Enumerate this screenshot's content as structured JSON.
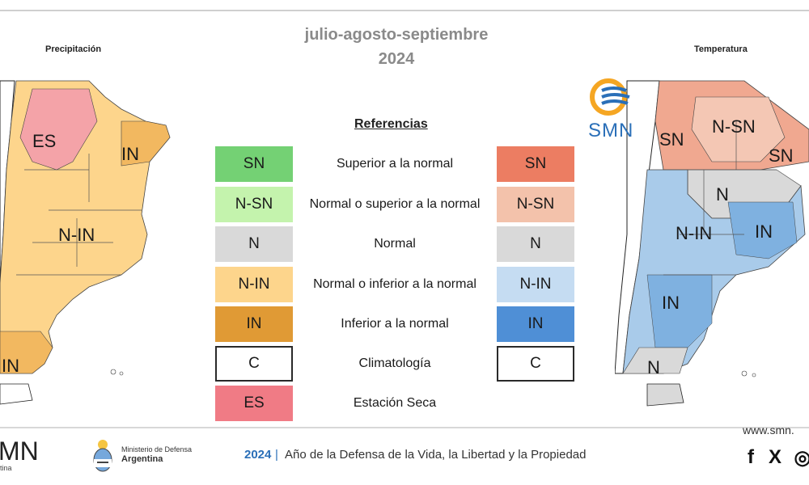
{
  "header": {
    "period": "julio-agosto-septiembre",
    "year": "2024"
  },
  "maps": {
    "left_title": "Precipitación",
    "right_title": "Temperatura",
    "left_regions": [
      "ES",
      "IN",
      "N-IN",
      "IN"
    ],
    "right_regions": [
      "SN",
      "N-SN",
      "SN",
      "N",
      "N-IN",
      "IN",
      "IN",
      "N"
    ]
  },
  "legend": {
    "title": "Referencias",
    "rows": [
      {
        "left_code": "SN",
        "left_color": "#74d174",
        "description": "Superior a la normal",
        "right_code": "SN",
        "right_color": "#ec7d62"
      },
      {
        "left_code": "N-SN",
        "left_color": "#c4f3ad",
        "description": "Normal o superior a la normal",
        "right_code": "N-SN",
        "right_color": "#f3c2ab"
      },
      {
        "left_code": "N",
        "left_color": "#d9d9d9",
        "description": "Normal",
        "right_code": "N",
        "right_color": "#d9d9d9"
      },
      {
        "left_code": "N-IN",
        "left_color": "#fdd58c",
        "description": "Normal o inferior a la normal",
        "right_code": "N-IN",
        "right_color": "#c5dcf2"
      },
      {
        "left_code": "IN",
        "left_color": "#e09a35",
        "description": "Inferior a la normal",
        "right_code": "IN",
        "right_color": "#4f8fd6"
      },
      {
        "left_code": "C",
        "left_color": "#ffffff",
        "description": "Climatología",
        "right_code": "C",
        "right_color": "#ffffff"
      },
      {
        "left_code": "ES",
        "left_color": "#f07b85",
        "description": "Estación Seca"
      }
    ]
  },
  "logo": {
    "text": "SMN",
    "icon": "smn-sun-waves-icon"
  },
  "footer": {
    "org_short": "MN",
    "org_sub": "tina",
    "ministry_line1": "Ministerio de Defensa",
    "ministry_line2": "Argentina",
    "year": "2024",
    "separator": "|",
    "motto": "Año de la Defensa de la Vida, la Libertad y la Propiedad",
    "url": "www.smn.",
    "social": [
      "facebook-icon",
      "x-icon",
      "instagram-icon"
    ],
    "social_glyphs": [
      "f",
      "X",
      "◎"
    ]
  },
  "colors": {
    "title_gray": "#8a8a8a",
    "smn_blue": "#2a6fb8",
    "smn_orange": "#f5a623"
  }
}
